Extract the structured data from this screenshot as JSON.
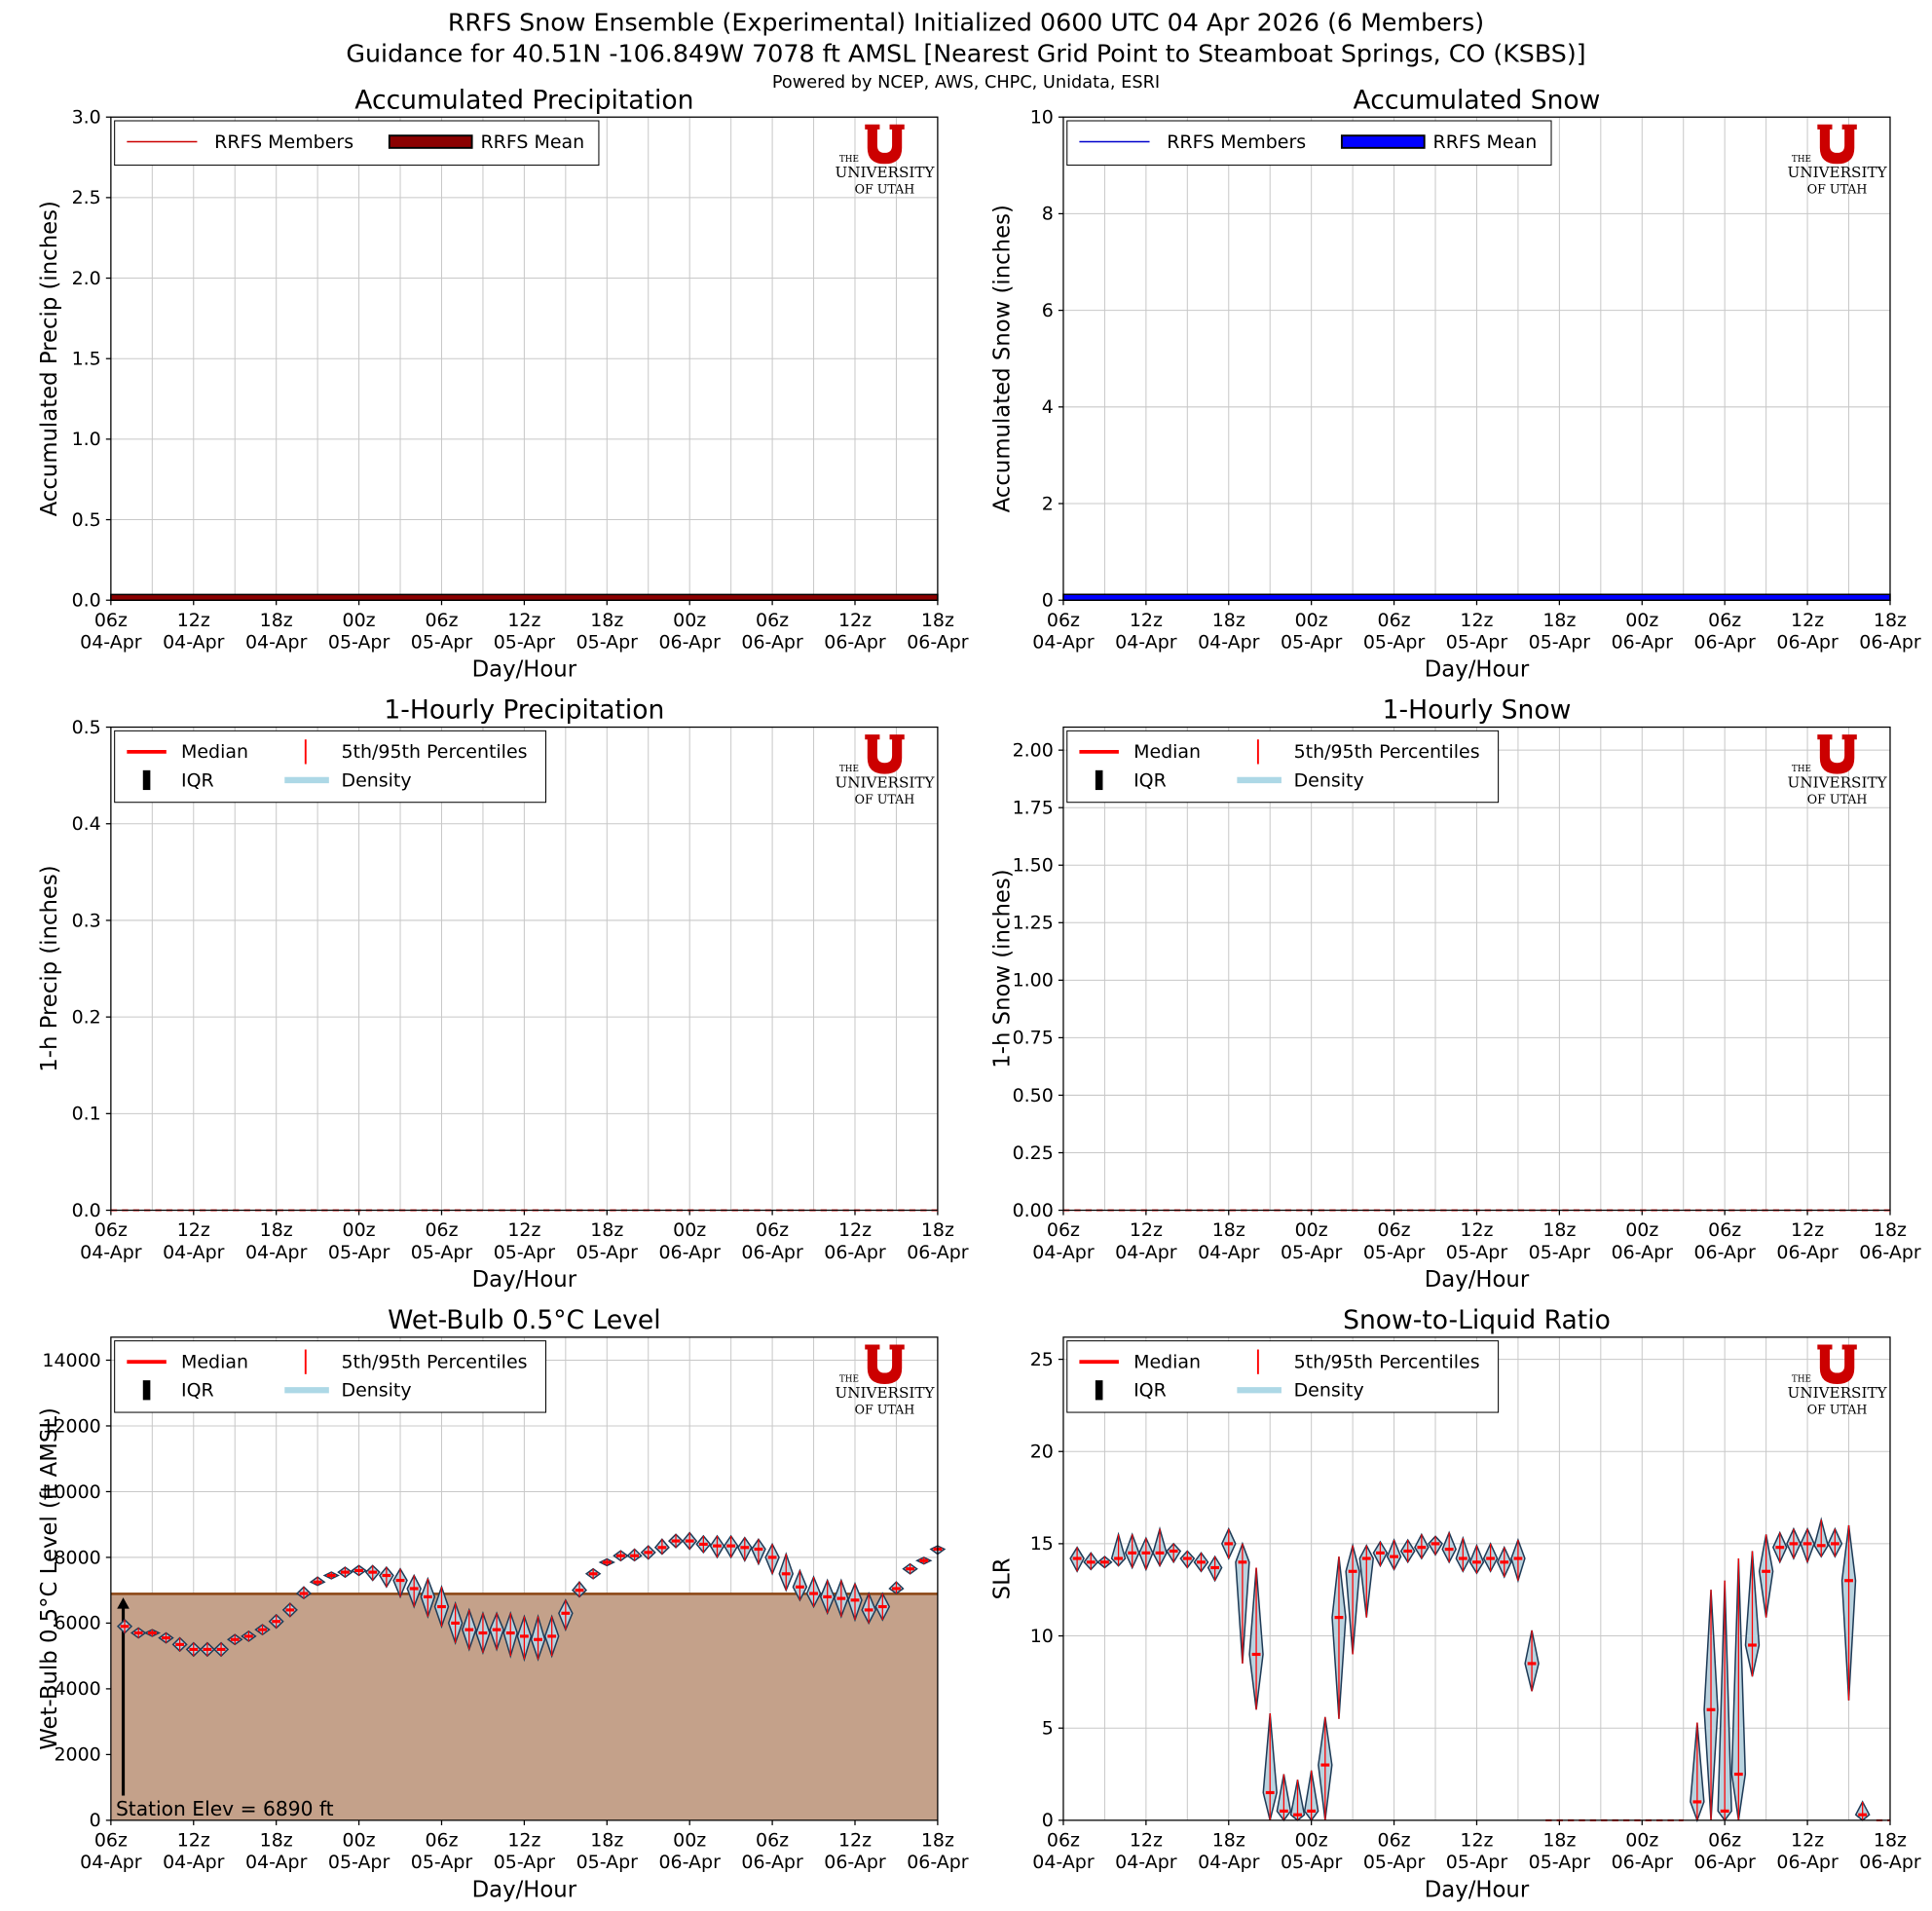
{
  "header": {
    "title": [
      "RRFS Snow Ensemble (Experimental) Initialized 0600 UTC 04 Apr 2026 (6 Members)",
      "Guidance for 40.51N -106.849W 7078 ft AMSL [Nearest Grid Point to Steamboat Springs, CO (KSBS)]"
    ],
    "subtitle": "Powered by NCEP, AWS, CHPC, Unidata, ESRI"
  },
  "logo": [
    "THE",
    "UNIVERSITY",
    "OF UTAH"
  ],
  "x_axis": {
    "xlabel": "Day/Hour",
    "xlim": [
      0,
      60
    ],
    "xticks": [
      {
        "value": 0,
        "label": "06z",
        "date": "04-Apr"
      },
      {
        "value": 6,
        "label": "12z",
        "date": "04-Apr"
      },
      {
        "value": 12,
        "label": "18z",
        "date": "04-Apr"
      },
      {
        "value": 18,
        "label": "00z",
        "date": "05-Apr"
      },
      {
        "value": 24,
        "label": "06z",
        "date": "05-Apr"
      },
      {
        "value": 30,
        "label": "12z",
        "date": "05-Apr"
      },
      {
        "value": 36,
        "label": "18z",
        "date": "05-Apr"
      },
      {
        "value": 42,
        "label": "00z",
        "date": "06-Apr"
      },
      {
        "value": 48,
        "label": "06z",
        "date": "06-Apr"
      },
      {
        "value": 54,
        "label": "12z",
        "date": "06-Apr"
      },
      {
        "value": 60,
        "label": "18z",
        "date": "06-Apr"
      }
    ],
    "xminorticks": [
      3,
      9,
      15,
      21,
      27,
      33,
      39,
      45,
      51,
      57
    ],
    "grid": true
  },
  "chart_data": [
    {
      "type": "line",
      "title": "Accumulated Precipitation",
      "ylabel": "Accumulated Precip (inches)",
      "ylim": [
        0,
        3
      ],
      "yticks": [
        {
          "value": 0,
          "label": "0.0"
        },
        0.5,
        {
          "value": 1,
          "label": "1.0"
        },
        1.5,
        {
          "value": 2,
          "label": "2.0"
        },
        2.5,
        {
          "value": 3,
          "label": "3.0"
        }
      ],
      "legend": "upper left",
      "series": [
        {
          "name": "RRFS Members",
          "color": "#cc0000",
          "x": [
            0,
            60
          ],
          "values": [
            0.03,
            0.03
          ]
        },
        {
          "name": "RRFS Mean",
          "color": "#8b0000",
          "x": [
            0,
            60
          ],
          "values": [
            0.035,
            0.035
          ]
        }
      ]
    },
    {
      "type": "line",
      "title": "Accumulated Snow",
      "ylabel": "Accumulated Snow (inches)",
      "ylim": [
        0,
        10
      ],
      "yticks": [
        0,
        2,
        4,
        6,
        8,
        10
      ],
      "legend": "upper left",
      "series": [
        {
          "name": "RRFS Members",
          "color": "#0000cc",
          "x": [
            0,
            60
          ],
          "values": [
            0.1,
            0.1
          ]
        },
        {
          "name": "RRFS Mean",
          "color": "#0000ff",
          "x": [
            0,
            60
          ],
          "values": [
            0.12,
            0.12
          ]
        }
      ]
    },
    {
      "type": "violin",
      "title": "1-Hourly Precipitation",
      "ylabel": "1-h Precip (inches)",
      "ylim": [
        0,
        0.5
      ],
      "yticks": [
        {
          "value": 0,
          "label": "0.0"
        },
        0.1,
        0.2,
        0.3,
        0.4,
        0.5
      ],
      "legend": "upper left",
      "legend_items": [
        {
          "name": "Median",
          "color": "#ff0000"
        },
        {
          "name": "5th/95th Percentiles",
          "color": "#ff0000"
        },
        {
          "name": "IQR",
          "color": "#000000"
        },
        {
          "name": "Density",
          "color": "#add8e6"
        }
      ],
      "violin_fill": "#b9d3df",
      "violin_edge": "#1f3b57",
      "x": [
        0,
        60
      ],
      "median": [
        0,
        0
      ],
      "low": [
        0,
        0
      ],
      "high": [
        0,
        0
      ]
    },
    {
      "type": "violin",
      "title": "1-Hourly Snow",
      "ylabel": "1-h Snow (inches)",
      "ylim": [
        0,
        2.1
      ],
      "yticks": [
        {
          "value": 0,
          "label": "0.00"
        },
        {
          "value": 0.25,
          "label": "0.25"
        },
        {
          "value": 0.5,
          "label": "0.50"
        },
        {
          "value": 0.75,
          "label": "0.75"
        },
        {
          "value": 1,
          "label": "1.00"
        },
        {
          "value": 1.25,
          "label": "1.25"
        },
        {
          "value": 1.5,
          "label": "1.50"
        },
        {
          "value": 1.75,
          "label": "1.75"
        },
        {
          "value": 2,
          "label": "2.00"
        }
      ],
      "legend": "upper left",
      "legend_items": [
        {
          "name": "Median",
          "color": "#ff0000"
        },
        {
          "name": "5th/95th Percentiles",
          "color": "#ff0000"
        },
        {
          "name": "IQR",
          "color": "#000000"
        },
        {
          "name": "Density",
          "color": "#add8e6"
        }
      ],
      "violin_fill": "#b9d3df",
      "violin_edge": "#1f3b57",
      "x": [
        0,
        60
      ],
      "median": [
        0,
        0
      ],
      "low": [
        0,
        0
      ],
      "high": [
        0,
        0
      ]
    },
    {
      "type": "violin",
      "title": "Wet-Bulb 0.5°C Level",
      "ylabel": "Wet-Bulb 0.5°C Level (ft AMSL)",
      "ylim": [
        0,
        14700
      ],
      "yticks": [
        0,
        2000,
        4000,
        6000,
        8000,
        10000,
        12000,
        14000
      ],
      "legend": "upper left",
      "legend_items": [
        {
          "name": "Median",
          "color": "#ff0000"
        },
        {
          "name": "5th/95th Percentiles",
          "color": "#ff0000"
        },
        {
          "name": "IQR",
          "color": "#000000"
        },
        {
          "name": "Density",
          "color": "#add8e6"
        }
      ],
      "violin_fill": "#b9d3df",
      "violin_edge": "#1f3b57",
      "station_elev": 6890,
      "annotation": "Station Elev = 6890 ft",
      "station_fill": "#c4a18a",
      "station_line": "#8b4513",
      "x": [
        1,
        2,
        3,
        4,
        5,
        6,
        7,
        8,
        9,
        10,
        11,
        12,
        13,
        14,
        15,
        16,
        17,
        18,
        19,
        20,
        21,
        22,
        23,
        24,
        25,
        26,
        27,
        28,
        29,
        30,
        31,
        32,
        33,
        34,
        35,
        36,
        37,
        38,
        39,
        40,
        41,
        42,
        43,
        44,
        45,
        46,
        47,
        48,
        49,
        50,
        51,
        52,
        53,
        54,
        55,
        56,
        57,
        58,
        59,
        60
      ],
      "median": [
        5900,
        5700,
        5700,
        5550,
        5350,
        5200,
        5200,
        5200,
        5500,
        5600,
        5800,
        6050,
        6400,
        6900,
        7250,
        7450,
        7550,
        7600,
        7550,
        7450,
        7300,
        7050,
        6800,
        6500,
        6000,
        5800,
        5700,
        5800,
        5700,
        5600,
        5500,
        5600,
        6300,
        7000,
        7500,
        7850,
        8050,
        8050,
        8150,
        8300,
        8500,
        8500,
        8400,
        8350,
        8350,
        8300,
        8250,
        8000,
        7500,
        7100,
        6900,
        6800,
        6750,
        6700,
        6400,
        6500,
        7050,
        7650,
        7900,
        8250
      ],
      "low": [
        5700,
        5550,
        5600,
        5400,
        5150,
        5000,
        5000,
        5000,
        5350,
        5450,
        5650,
        5850,
        6200,
        6750,
        7150,
        7350,
        7400,
        7450,
        7300,
        7100,
        6800,
        6500,
        6200,
        5900,
        5400,
        5200,
        5100,
        5200,
        5000,
        4900,
        4900,
        5000,
        5800,
        6800,
        7350,
        7750,
        7900,
        7900,
        7950,
        8100,
        8300,
        8250,
        8150,
        8000,
        8000,
        7900,
        7800,
        7500,
        7000,
        6700,
        6500,
        6300,
        6200,
        6100,
        6000,
        6100,
        6900,
        7500,
        7800,
        8100
      ],
      "high": [
        6100,
        5850,
        5800,
        5700,
        5550,
        5400,
        5400,
        5400,
        5650,
        5750,
        5950,
        6250,
        6600,
        7100,
        7400,
        7550,
        7700,
        7750,
        7750,
        7700,
        7650,
        7450,
        7350,
        7100,
        6600,
        6400,
        6300,
        6300,
        6300,
        6200,
        6200,
        6200,
        6700,
        7250,
        7650,
        7950,
        8200,
        8250,
        8350,
        8550,
        8700,
        8750,
        8650,
        8650,
        8650,
        8600,
        8550,
        8400,
        8100,
        7600,
        7400,
        7300,
        7300,
        7200,
        6900,
        6900,
        7250,
        7800,
        8000,
        8350
      ]
    },
    {
      "type": "violin",
      "title": "Snow-to-Liquid Ratio",
      "ylabel": "SLR",
      "ylim": [
        0,
        26.2
      ],
      "yticks": [
        0,
        5,
        10,
        15,
        20,
        25
      ],
      "legend": "upper left",
      "legend_items": [
        {
          "name": "Median",
          "color": "#ff0000"
        },
        {
          "name": "5th/95th Percentiles",
          "color": "#ff0000"
        },
        {
          "name": "IQR",
          "color": "#000000"
        },
        {
          "name": "Density",
          "color": "#add8e6"
        }
      ],
      "violin_fill": "#b9d3df",
      "violin_edge": "#1f3b57",
      "x": [
        1,
        2,
        3,
        4,
        5,
        6,
        7,
        8,
        9,
        10,
        11,
        12,
        13,
        14,
        15,
        16,
        17,
        18,
        19,
        20,
        21,
        22,
        23,
        24,
        25,
        26,
        27,
        28,
        29,
        30,
        31,
        32,
        33,
        34,
        35,
        36,
        37,
        38,
        39,
        40,
        41,
        42,
        43,
        44,
        45,
        46,
        47,
        48,
        49,
        50,
        51,
        52,
        53,
        54,
        55,
        56,
        57,
        58,
        59,
        60
      ],
      "median": [
        14.2,
        14.0,
        14.0,
        14.2,
        14.5,
        14.5,
        14.5,
        14.6,
        14.2,
        14.0,
        13.7,
        15.0,
        14.0,
        9.0,
        1.5,
        0.5,
        0.3,
        0.5,
        3.0,
        11.0,
        13.5,
        14.2,
        14.5,
        14.3,
        14.6,
        14.8,
        15.0,
        14.7,
        14.2,
        14.0,
        14.2,
        14.0,
        14.2,
        8.5,
        0,
        0,
        0,
        0,
        0,
        0,
        0,
        0,
        0,
        0,
        0,
        1.0,
        6.0,
        0.5,
        2.5,
        9.5,
        13.5,
        14.8,
        15.0,
        15.0,
        14.9,
        15.0,
        13.0,
        0.3,
        0,
        0
      ],
      "low": [
        13.5,
        13.6,
        13.7,
        13.8,
        13.7,
        13.6,
        13.8,
        14.0,
        13.7,
        13.5,
        13.0,
        14.2,
        8.5,
        6.0,
        0,
        0,
        0,
        0,
        0,
        5.5,
        9.0,
        11.0,
        13.8,
        13.6,
        14.0,
        14.2,
        14.4,
        14.0,
        13.5,
        13.4,
        13.5,
        13.2,
        13.0,
        7.0,
        0,
        0,
        0,
        0,
        0,
        0,
        0,
        0,
        0,
        0,
        0,
        0,
        0,
        0,
        0,
        7.8,
        11.0,
        14.0,
        14.2,
        14.0,
        14.3,
        14.3,
        6.5,
        0,
        0,
        0
      ],
      "high": [
        14.8,
        14.5,
        14.3,
        15.5,
        15.5,
        15.3,
        15.8,
        15.0,
        14.6,
        14.5,
        14.3,
        15.8,
        15.0,
        13.7,
        5.8,
        2.5,
        2.2,
        2.7,
        5.6,
        14.3,
        14.9,
        14.9,
        15.1,
        15.2,
        15.2,
        15.5,
        15.4,
        15.6,
        15.3,
        14.9,
        15.0,
        14.8,
        15.2,
        10.3,
        0,
        0,
        0,
        0,
        0,
        0,
        0,
        0,
        0,
        0,
        0,
        5.3,
        12.5,
        13.0,
        14.2,
        14.6,
        15.5,
        15.6,
        15.8,
        15.8,
        16.3,
        15.8,
        16.0,
        1.0,
        0,
        0
      ]
    }
  ]
}
